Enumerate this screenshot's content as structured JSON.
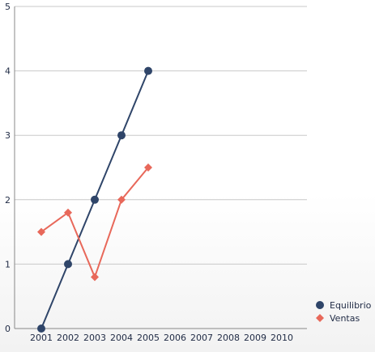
{
  "chart_data": {
    "type": "line",
    "title": "",
    "xlabel": "",
    "ylabel": "",
    "categories": [
      "2001",
      "2002",
      "2003",
      "2004",
      "2005",
      "2006",
      "2007",
      "2008",
      "2009",
      "2010"
    ],
    "ylim": [
      0,
      5
    ],
    "yticks": [
      0,
      1,
      2,
      3,
      4,
      5
    ],
    "grid": "horizontal",
    "legend_position": "right",
    "series": [
      {
        "name": "Equilibrio",
        "color": "#2f4569",
        "marker": "circle",
        "values": [
          0,
          1,
          2,
          3,
          4,
          null,
          null,
          null,
          null,
          null
        ]
      },
      {
        "name": "Ventas",
        "color": "#e8685a",
        "marker": "diamond",
        "values": [
          1.5,
          1.8,
          0.8,
          2.0,
          2.5,
          null,
          null,
          null,
          null,
          null
        ]
      }
    ]
  }
}
